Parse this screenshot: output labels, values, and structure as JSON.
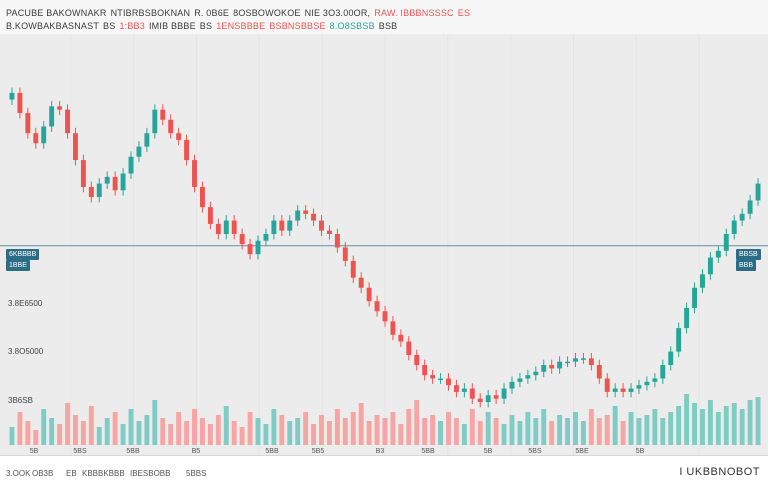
{
  "header": {
    "line1": [
      {
        "text": "PACUBE BAKOWNAKR",
        "tone": "neutral"
      },
      {
        "text": "NTIBRBSBOKNAN",
        "tone": "neutral"
      },
      {
        "text": "R. 0B6E",
        "tone": "neutral"
      },
      {
        "text": "8OSBOWOKOE",
        "tone": "neutral"
      },
      {
        "text": "NIE 3O3.00OR,",
        "tone": "neutral"
      },
      {
        "text": "RAW. IBBBNSSSC",
        "tone": "dn"
      },
      {
        "text": "ES",
        "tone": "dn"
      }
    ],
    "line2": [
      {
        "text": "B.KOWBAKBASNAST",
        "tone": "neutral"
      },
      {
        "text": "BS",
        "tone": "neutral"
      },
      {
        "text": "1:BB3",
        "tone": "dn"
      },
      {
        "text": "IMIB BBBE",
        "tone": "neutral"
      },
      {
        "text": "BS",
        "tone": "neutral"
      },
      {
        "text": "1ENSBBBE",
        "tone": "dn"
      },
      {
        "text": "BSBNSBBSE",
        "tone": "dn"
      },
      {
        "text": "8.O8SBSB",
        "tone": "up"
      },
      {
        "text": "BSB",
        "tone": "neutral"
      }
    ]
  },
  "price_tags": {
    "left": [
      "6KBBBB",
      "1BBE"
    ],
    "right": [
      "BBSB",
      "BBB"
    ]
  },
  "y_labels": [
    "3.8E6500",
    "3.8O5000",
    "3B6SB"
  ],
  "x_labels": [
    "5B",
    "5BS",
    "5BB",
    "B5",
    "5BB",
    "5B5",
    "B3",
    "5BB",
    "5B",
    "5BS",
    "5BE",
    "5B"
  ],
  "footer": {
    "items": [
      "3.OOK",
      "OB3B",
      "EB",
      "KBBBKB",
      "BB",
      "IBESBOBB",
      "5BBS"
    ],
    "right_text": "I UKBBNOBOT"
  },
  "colors": {
    "up": "#26a69a",
    "down": "#ef5350",
    "up_vol": "#80cbc4",
    "down_vol": "#f6a5a3",
    "guide": "#2b6d86"
  },
  "chart_data": {
    "type": "candlestick",
    "title": "",
    "y_range": [
      0,
      100
    ],
    "guide_level": 46.5,
    "volume_range": [
      0,
      100
    ],
    "series": {
      "open": [
        90,
        92,
        86,
        80,
        77,
        82,
        88,
        87,
        80,
        72,
        64,
        61,
        65,
        67,
        63,
        68,
        73,
        76,
        80,
        87,
        84,
        80,
        78,
        72,
        64,
        58,
        53,
        50,
        54,
        50,
        47,
        44,
        48,
        50,
        54,
        51,
        54,
        57,
        56,
        54,
        51,
        50,
        46,
        42,
        37,
        34,
        30,
        27,
        24,
        20,
        18,
        14,
        11,
        8,
        7,
        7,
        5,
        3,
        4,
        1,
        0,
        2,
        1,
        4,
        6,
        7,
        8,
        9,
        11,
        10,
        12,
        12,
        13,
        13,
        11,
        7,
        3,
        4,
        3,
        4,
        5,
        6,
        7,
        11,
        15,
        22,
        28,
        34,
        38,
        43,
        45,
        50,
        54,
        56,
        60
      ],
      "close": [
        92,
        86,
        80,
        77,
        82,
        88,
        87,
        80,
        72,
        64,
        61,
        65,
        67,
        63,
        68,
        73,
        76,
        80,
        87,
        84,
        80,
        78,
        72,
        64,
        58,
        53,
        50,
        54,
        50,
        47,
        44,
        48,
        50,
        54,
        51,
        54,
        57,
        56,
        54,
        51,
        50,
        46,
        42,
        37,
        34,
        30,
        27,
        24,
        20,
        18,
        14,
        11,
        8,
        7,
        7,
        5,
        3,
        4,
        1,
        0,
        2,
        1,
        4,
        6,
        7,
        8,
        9,
        11,
        10,
        12,
        12,
        13,
        13,
        11,
        7,
        3,
        4,
        3,
        4,
        5,
        6,
        7,
        11,
        15,
        22,
        28,
        34,
        38,
        43,
        45,
        50,
        54,
        56,
        60,
        65
      ],
      "volume": [
        30,
        55,
        40,
        25,
        60,
        45,
        35,
        70,
        50,
        40,
        65,
        30,
        45,
        55,
        35,
        60,
        40,
        50,
        75,
        45,
        35,
        55,
        40,
        60,
        45,
        35,
        50,
        65,
        40,
        30,
        55,
        45,
        35,
        60,
        50,
        40,
        45,
        55,
        35,
        50,
        40,
        60,
        45,
        55,
        70,
        40,
        50,
        45,
        55,
        35,
        60,
        75,
        45,
        50,
        40,
        55,
        45,
        35,
        60,
        40,
        55,
        45,
        35,
        50,
        40,
        55,
        45,
        60,
        40,
        50,
        45,
        55,
        40,
        60,
        45,
        50,
        65,
        40,
        55,
        45,
        50,
        60,
        45,
        55,
        65,
        85,
        70,
        60,
        75,
        55,
        65,
        70,
        60,
        75,
        80
      ]
    }
  }
}
